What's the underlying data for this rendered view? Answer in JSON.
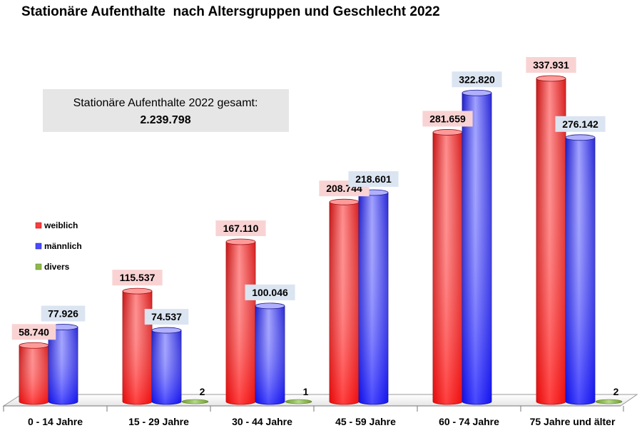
{
  "chart_data": {
    "type": "bar",
    "title": "Stationäre Aufenthalte  nach Altersgruppen und Geschlecht 2022",
    "xlabel": "",
    "ylabel": "",
    "categories": [
      "0 - 14 Jahre",
      "15 - 29 Jahre",
      "30 - 44 Jahre",
      "45 - 59 Jahre",
      "60 - 74 Jahre",
      "75 Jahre und älter"
    ],
    "series": [
      {
        "name": "weiblich",
        "color": "#ff3b3b",
        "label_bg": "#f9d3d3",
        "values": [
          58740,
          115537,
          167110,
          208744,
          281659,
          337931
        ],
        "labels": [
          "58.740",
          "115.537",
          "167.110",
          "208.744",
          "281.659",
          "337.931"
        ]
      },
      {
        "name": "männlich",
        "color": "#4a4aff",
        "label_bg": "#dbe5f1",
        "values": [
          77926,
          74537,
          100046,
          218601,
          322820,
          276142
        ],
        "labels": [
          "77.926",
          "74.537",
          "100.046",
          "218.601",
          "322.820",
          "276.142"
        ]
      },
      {
        "name": "divers",
        "color": "#8fb84a",
        "label_bg": "",
        "values": [
          0,
          2,
          1,
          0,
          0,
          2
        ],
        "labels": [
          "",
          "2",
          "1",
          "",
          "",
          "2"
        ]
      }
    ],
    "ylim": [
      0,
      400000
    ],
    "grid": false,
    "legend_position": "left",
    "annotation": {
      "text": "Stationäre Aufenthalte 2022 gesamt:",
      "value": "2.239.798"
    }
  }
}
